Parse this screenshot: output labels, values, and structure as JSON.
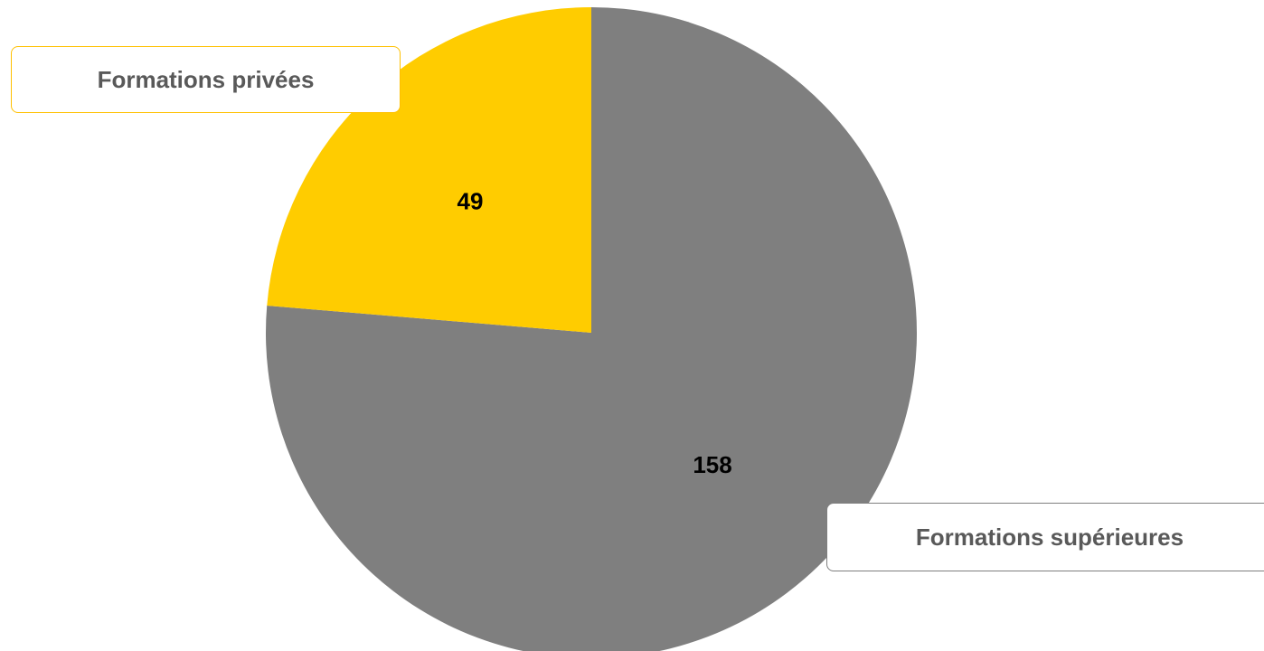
{
  "chart_data": {
    "type": "pie",
    "slices": [
      {
        "label": "Formations supérieures",
        "value": 158,
        "color": "#7f7f7f"
      },
      {
        "label": "Formations privées",
        "value": 49,
        "color": "#ffcc00"
      }
    ],
    "start_angle_deg": 0,
    "direction": "clockwise",
    "data_labels": true
  }
}
